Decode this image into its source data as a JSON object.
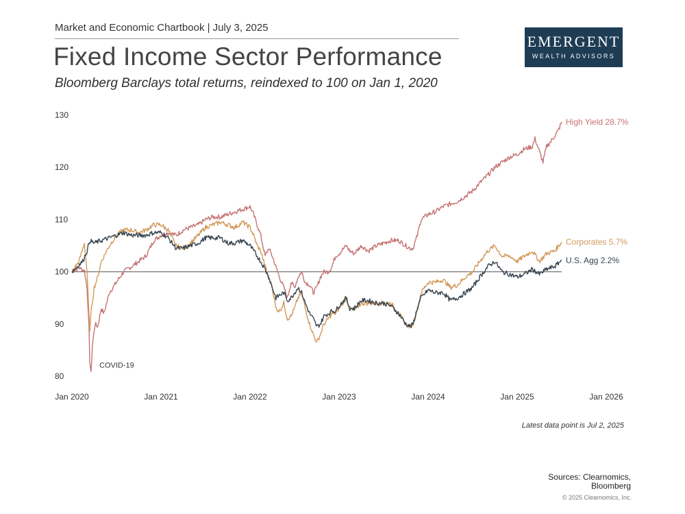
{
  "header": {
    "chartbook_line": "Market and Economic Chartbook | July 3, 2025",
    "title": "Fixed Income Sector Performance",
    "subtitle": "Bloomberg Barclays total returns, reindexed to 100 on Jan 1, 2020"
  },
  "logo": {
    "main": "Emergent",
    "sub": "Wealth Advisors",
    "background": "#1f3c55"
  },
  "footer": {
    "latest_note": "Latest data point is Jul 2, 2025",
    "sources_line1": "Sources: Clearnomics,",
    "sources_line2": "Bloomberg",
    "copyright": "© 2025 Clearnomics, Inc."
  },
  "chart_data": {
    "type": "line",
    "title": "Fixed Income Sector Performance",
    "xlabel": "",
    "ylabel": "",
    "ylim": [
      80,
      130
    ],
    "xlim": [
      2020.0,
      2026.0
    ],
    "yticks": [
      80,
      90,
      100,
      110,
      120,
      130
    ],
    "xticks": [
      {
        "x": 2020.0,
        "label": "Jan 2020"
      },
      {
        "x": 2021.0,
        "label": "Jan 2021"
      },
      {
        "x": 2022.0,
        "label": "Jan 2022"
      },
      {
        "x": 2023.0,
        "label": "Jan 2023"
      },
      {
        "x": 2024.0,
        "label": "Jan 2024"
      },
      {
        "x": 2025.0,
        "label": "Jan 2025"
      },
      {
        "x": 2026.0,
        "label": "Jan 2026"
      }
    ],
    "reference_line": 100,
    "annotations": [
      {
        "label": "COVID-19",
        "x": 2020.2,
        "y": 83.5
      }
    ],
    "series": [
      {
        "name": "High Yield",
        "end_label": "High Yield 28.7%",
        "color": "#c57272",
        "points": [
          [
            2020.0,
            100
          ],
          [
            2020.08,
            100.8
          ],
          [
            2020.14,
            100.2
          ],
          [
            2020.17,
            97
          ],
          [
            2020.19,
            90
          ],
          [
            2020.2,
            83
          ],
          [
            2020.215,
            80.5
          ],
          [
            2020.23,
            86
          ],
          [
            2020.26,
            90
          ],
          [
            2020.29,
            89.5
          ],
          [
            2020.33,
            93
          ],
          [
            2020.36,
            92
          ],
          [
            2020.42,
            96
          ],
          [
            2020.5,
            98
          ],
          [
            2020.58,
            100
          ],
          [
            2020.67,
            101
          ],
          [
            2020.75,
            102
          ],
          [
            2020.83,
            103
          ],
          [
            2020.92,
            106
          ],
          [
            2021.0,
            107
          ],
          [
            2021.08,
            107.5
          ],
          [
            2021.17,
            107
          ],
          [
            2021.25,
            108
          ],
          [
            2021.33,
            108.5
          ],
          [
            2021.42,
            109
          ],
          [
            2021.5,
            110
          ],
          [
            2021.58,
            110.5
          ],
          [
            2021.67,
            110.5
          ],
          [
            2021.75,
            111
          ],
          [
            2021.83,
            111.5
          ],
          [
            2021.92,
            112
          ],
          [
            2022.0,
            112.5
          ],
          [
            2022.04,
            111
          ],
          [
            2022.08,
            109
          ],
          [
            2022.12,
            107
          ],
          [
            2022.17,
            103
          ],
          [
            2022.21,
            104.5
          ],
          [
            2022.25,
            103
          ],
          [
            2022.29,
            101
          ],
          [
            2022.33,
            99
          ],
          [
            2022.38,
            97
          ],
          [
            2022.42,
            95
          ],
          [
            2022.46,
            98
          ],
          [
            2022.5,
            97
          ],
          [
            2022.54,
            99
          ],
          [
            2022.58,
            100
          ],
          [
            2022.62,
            98
          ],
          [
            2022.67,
            97.5
          ],
          [
            2022.71,
            96
          ],
          [
            2022.75,
            97
          ],
          [
            2022.79,
            99
          ],
          [
            2022.83,
            100
          ],
          [
            2022.88,
            100
          ],
          [
            2022.92,
            101
          ],
          [
            2022.96,
            103
          ],
          [
            2023.0,
            103.5
          ],
          [
            2023.08,
            105
          ],
          [
            2023.12,
            104
          ],
          [
            2023.17,
            103.5
          ],
          [
            2023.25,
            105
          ],
          [
            2023.33,
            104
          ],
          [
            2023.42,
            105
          ],
          [
            2023.5,
            105.5
          ],
          [
            2023.58,
            106
          ],
          [
            2023.67,
            106
          ],
          [
            2023.75,
            105
          ],
          [
            2023.8,
            104.5
          ],
          [
            2023.83,
            104.5
          ],
          [
            2023.88,
            107
          ],
          [
            2023.92,
            110
          ],
          [
            2024.0,
            111
          ],
          [
            2024.08,
            111.5
          ],
          [
            2024.17,
            112.5
          ],
          [
            2024.25,
            113
          ],
          [
            2024.33,
            113.5
          ],
          [
            2024.42,
            114.5
          ],
          [
            2024.5,
            115.5
          ],
          [
            2024.58,
            117
          ],
          [
            2024.67,
            118.5
          ],
          [
            2024.75,
            120
          ],
          [
            2024.83,
            121
          ],
          [
            2024.92,
            122
          ],
          [
            2025.0,
            122.5
          ],
          [
            2025.08,
            123.5
          ],
          [
            2025.17,
            124
          ],
          [
            2025.2,
            125.5
          ],
          [
            2025.25,
            123
          ],
          [
            2025.29,
            121
          ],
          [
            2025.33,
            124
          ],
          [
            2025.38,
            125
          ],
          [
            2025.42,
            126
          ],
          [
            2025.46,
            127
          ],
          [
            2025.5,
            128.7
          ]
        ]
      },
      {
        "name": "Corporates",
        "end_label": "Corporates 5.7%",
        "color": "#d1995a",
        "points": [
          [
            2020.0,
            100
          ],
          [
            2020.08,
            102
          ],
          [
            2020.14,
            105.5
          ],
          [
            2020.17,
            100
          ],
          [
            2020.19,
            92
          ],
          [
            2020.2,
            89
          ],
          [
            2020.22,
            93
          ],
          [
            2020.25,
            97
          ],
          [
            2020.29,
            99
          ],
          [
            2020.33,
            102
          ],
          [
            2020.42,
            105
          ],
          [
            2020.5,
            107
          ],
          [
            2020.58,
            108
          ],
          [
            2020.67,
            108
          ],
          [
            2020.75,
            107.5
          ],
          [
            2020.83,
            108
          ],
          [
            2020.92,
            109
          ],
          [
            2021.0,
            109
          ],
          [
            2021.08,
            108
          ],
          [
            2021.17,
            105
          ],
          [
            2021.25,
            104.5
          ],
          [
            2021.33,
            105.5
          ],
          [
            2021.42,
            107
          ],
          [
            2021.5,
            108.5
          ],
          [
            2021.58,
            109
          ],
          [
            2021.67,
            109.5
          ],
          [
            2021.75,
            109
          ],
          [
            2021.83,
            108.5
          ],
          [
            2021.92,
            109.5
          ],
          [
            2022.0,
            108.5
          ],
          [
            2022.04,
            107
          ],
          [
            2022.08,
            105
          ],
          [
            2022.12,
            104
          ],
          [
            2022.17,
            101
          ],
          [
            2022.21,
            99
          ],
          [
            2022.25,
            97
          ],
          [
            2022.29,
            93
          ],
          [
            2022.33,
            92.5
          ],
          [
            2022.38,
            94
          ],
          [
            2022.42,
            91
          ],
          [
            2022.46,
            91.5
          ],
          [
            2022.5,
            93
          ],
          [
            2022.54,
            95
          ],
          [
            2022.58,
            96
          ],
          [
            2022.62,
            93
          ],
          [
            2022.67,
            90
          ],
          [
            2022.71,
            88
          ],
          [
            2022.75,
            86.5
          ],
          [
            2022.79,
            88
          ],
          [
            2022.83,
            90
          ],
          [
            2022.88,
            91
          ],
          [
            2022.92,
            92
          ],
          [
            2022.96,
            92
          ],
          [
            2023.0,
            93
          ],
          [
            2023.08,
            95
          ],
          [
            2023.12,
            93
          ],
          [
            2023.17,
            92.5
          ],
          [
            2023.25,
            94
          ],
          [
            2023.33,
            94
          ],
          [
            2023.42,
            94
          ],
          [
            2023.5,
            94
          ],
          [
            2023.58,
            94
          ],
          [
            2023.67,
            92
          ],
          [
            2023.75,
            90
          ],
          [
            2023.8,
            89.5
          ],
          [
            2023.83,
            90
          ],
          [
            2023.88,
            93
          ],
          [
            2023.92,
            96
          ],
          [
            2024.0,
            98
          ],
          [
            2024.08,
            98
          ],
          [
            2024.17,
            98.5
          ],
          [
            2024.25,
            97
          ],
          [
            2024.33,
            97.5
          ],
          [
            2024.42,
            99
          ],
          [
            2024.5,
            100
          ],
          [
            2024.58,
            102
          ],
          [
            2024.67,
            104
          ],
          [
            2024.75,
            105
          ],
          [
            2024.83,
            103
          ],
          [
            2024.92,
            103
          ],
          [
            2025.0,
            102
          ],
          [
            2025.08,
            103
          ],
          [
            2025.17,
            104
          ],
          [
            2025.25,
            102
          ],
          [
            2025.33,
            103.5
          ],
          [
            2025.42,
            104
          ],
          [
            2025.5,
            105.7
          ]
        ]
      },
      {
        "name": "U.S. Agg",
        "end_label": "U.S. Agg 2.2%",
        "color": "#36434f",
        "points": [
          [
            2020.0,
            100
          ],
          [
            2020.06,
            101
          ],
          [
            2020.12,
            102
          ],
          [
            2020.17,
            104
          ],
          [
            2020.2,
            106
          ],
          [
            2020.25,
            105.5
          ],
          [
            2020.33,
            106
          ],
          [
            2020.42,
            106.5
          ],
          [
            2020.5,
            107
          ],
          [
            2020.58,
            107.5
          ],
          [
            2020.67,
            107
          ],
          [
            2020.75,
            107
          ],
          [
            2020.83,
            107
          ],
          [
            2020.92,
            107.5
          ],
          [
            2021.0,
            107.5
          ],
          [
            2021.08,
            106.5
          ],
          [
            2021.17,
            104.5
          ],
          [
            2021.25,
            104.5
          ],
          [
            2021.33,
            105
          ],
          [
            2021.42,
            105.5
          ],
          [
            2021.5,
            106.5
          ],
          [
            2021.58,
            106.5
          ],
          [
            2021.67,
            106.5
          ],
          [
            2021.75,
            105.5
          ],
          [
            2021.83,
            105.5
          ],
          [
            2021.92,
            106
          ],
          [
            2022.0,
            105
          ],
          [
            2022.04,
            104
          ],
          [
            2022.08,
            103
          ],
          [
            2022.12,
            102
          ],
          [
            2022.17,
            100.5
          ],
          [
            2022.21,
            99
          ],
          [
            2022.25,
            97
          ],
          [
            2022.29,
            95
          ],
          [
            2022.33,
            95.5
          ],
          [
            2022.38,
            96
          ],
          [
            2022.42,
            94.5
          ],
          [
            2022.46,
            95
          ],
          [
            2022.5,
            96
          ],
          [
            2022.54,
            97
          ],
          [
            2022.58,
            96
          ],
          [
            2022.62,
            94
          ],
          [
            2022.67,
            92
          ],
          [
            2022.71,
            91
          ],
          [
            2022.75,
            89.5
          ],
          [
            2022.79,
            90
          ],
          [
            2022.83,
            91.5
          ],
          [
            2022.88,
            92
          ],
          [
            2022.92,
            92.5
          ],
          [
            2022.96,
            92.5
          ],
          [
            2023.0,
            93.5
          ],
          [
            2023.08,
            95
          ],
          [
            2023.12,
            93
          ],
          [
            2023.17,
            93
          ],
          [
            2023.25,
            94.5
          ],
          [
            2023.33,
            94.5
          ],
          [
            2023.42,
            94
          ],
          [
            2023.5,
            94
          ],
          [
            2023.58,
            93.5
          ],
          [
            2023.67,
            92
          ],
          [
            2023.75,
            90
          ],
          [
            2023.8,
            89.5
          ],
          [
            2023.83,
            90
          ],
          [
            2023.88,
            93
          ],
          [
            2023.92,
            95
          ],
          [
            2024.0,
            96.5
          ],
          [
            2024.08,
            96
          ],
          [
            2024.17,
            96
          ],
          [
            2024.25,
            94.5
          ],
          [
            2024.33,
            95
          ],
          [
            2024.42,
            96
          ],
          [
            2024.5,
            97
          ],
          [
            2024.58,
            99
          ],
          [
            2024.67,
            101
          ],
          [
            2024.75,
            102
          ],
          [
            2024.83,
            100
          ],
          [
            2024.92,
            99.5
          ],
          [
            2025.0,
            99
          ],
          [
            2025.08,
            99.5
          ],
          [
            2025.17,
            100.5
          ],
          [
            2025.25,
            99.5
          ],
          [
            2025.33,
            100.5
          ],
          [
            2025.42,
            101
          ],
          [
            2025.5,
            102.2
          ]
        ]
      }
    ]
  }
}
